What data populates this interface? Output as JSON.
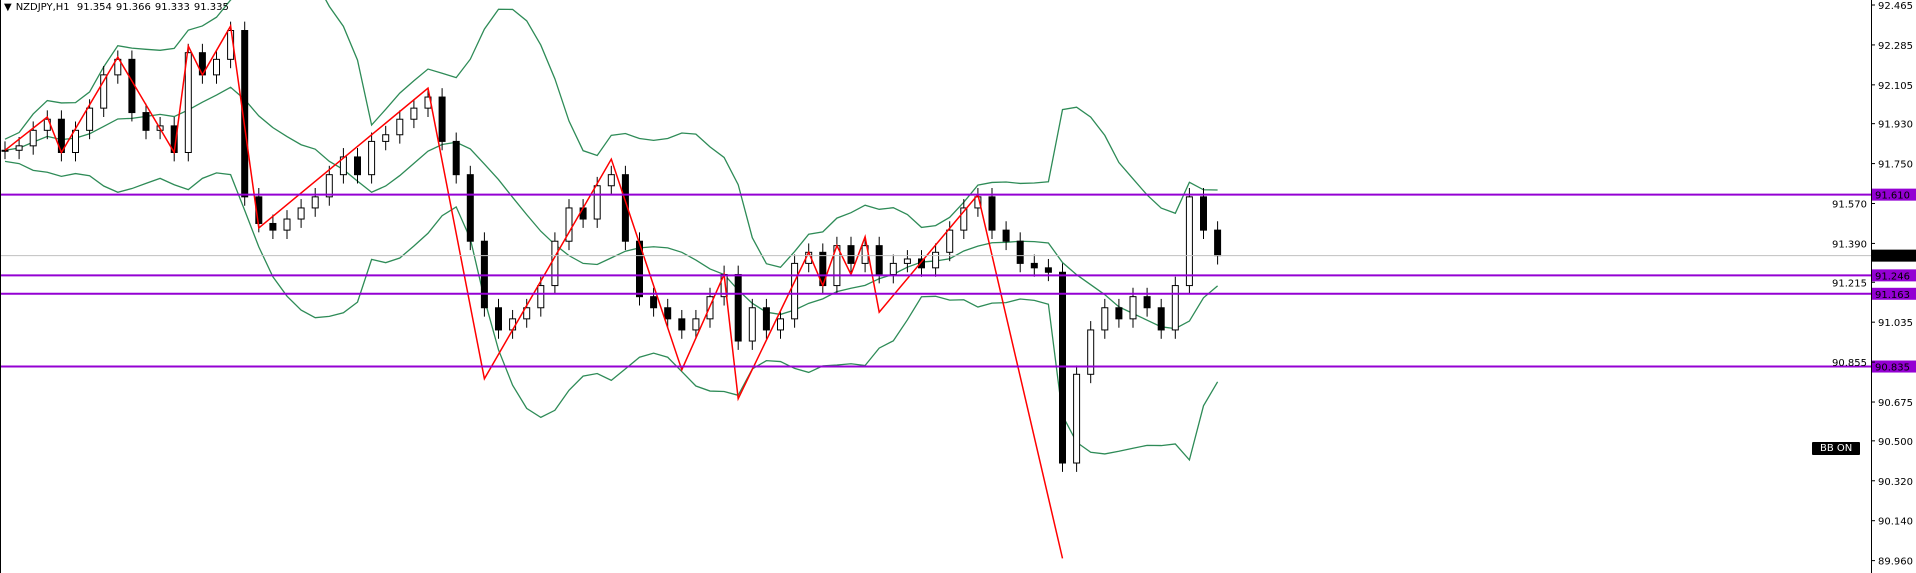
{
  "header": {
    "symbol": "NZDJPY,H1",
    "open": "91.354",
    "high": "91.366",
    "low": "91.333",
    "close": "91.335"
  },
  "badge": "BB ON",
  "colors": {
    "bull_body": "#ffffff",
    "bear_body": "#000000",
    "zigzag": "#ff0000",
    "bands": "#2e8b57",
    "levels": "#9400d3",
    "bid_line": "#c0c0c0"
  },
  "chart_data": {
    "type": "candlestick",
    "ylim": [
      89.94,
      92.49
    ],
    "yticks": [
      "92.465",
      "92.285",
      "92.105",
      "91.930",
      "91.750",
      "91.570",
      "91.390",
      "91.215",
      "91.035",
      "90.855",
      "90.675",
      "90.500",
      "90.320",
      "90.140",
      "89.960"
    ],
    "closes": [
      91.81,
      91.83,
      91.9,
      91.95,
      91.8,
      91.9,
      92.0,
      92.15,
      92.22,
      91.98,
      91.9,
      91.92,
      91.8,
      92.25,
      92.15,
      92.22,
      92.35,
      91.6,
      91.48,
      91.45,
      91.5,
      91.55,
      91.6,
      91.7,
      91.78,
      91.7,
      91.85,
      91.88,
      91.95,
      92.0,
      92.05,
      91.85,
      91.7,
      91.4,
      91.1,
      91.0,
      91.05,
      91.1,
      91.2,
      91.4,
      91.55,
      91.5,
      91.65,
      91.7,
      91.4,
      91.15,
      91.1,
      91.05,
      91.0,
      91.05,
      91.15,
      91.25,
      90.95,
      91.1,
      91.0,
      91.05,
      91.3,
      91.35,
      91.2,
      91.38,
      91.3,
      91.38,
      91.25,
      91.3,
      91.32,
      91.28,
      91.35,
      91.45,
      91.55,
      91.6,
      91.45,
      91.4,
      91.3,
      91.28,
      91.26,
      90.4,
      90.8,
      91.0,
      91.1,
      91.05,
      91.15,
      91.1,
      91.0,
      91.2,
      91.6,
      91.45,
      91.335
    ],
    "zigzag": [
      [
        0,
        91.81
      ],
      [
        3,
        91.96
      ],
      [
        4,
        91.8
      ],
      [
        8,
        92.23
      ],
      [
        12,
        91.8
      ],
      [
        13,
        92.28
      ],
      [
        14,
        92.15
      ],
      [
        16,
        92.37
      ],
      [
        18,
        91.46
      ],
      [
        30,
        92.09
      ],
      [
        34,
        90.78
      ],
      [
        43,
        91.77
      ],
      [
        48,
        90.82
      ],
      [
        51,
        91.25
      ],
      [
        52,
        90.69
      ],
      [
        57,
        91.35
      ],
      [
        58,
        91.2
      ],
      [
        59,
        91.38
      ],
      [
        60,
        91.25
      ],
      [
        61,
        91.42
      ],
      [
        62,
        91.08
      ],
      [
        69,
        91.61
      ],
      [
        75,
        89.97
      ]
    ],
    "levels": [
      {
        "price": 91.61,
        "label": "91.610"
      },
      {
        "price": 91.246,
        "label": "91.246"
      },
      {
        "price": 91.163,
        "label": "91.163"
      },
      {
        "price": 90.835,
        "label": "90.835"
      }
    ],
    "bid": {
      "price": 91.335,
      "label": "91.335"
    },
    "indicator": "Bollinger Bands"
  }
}
